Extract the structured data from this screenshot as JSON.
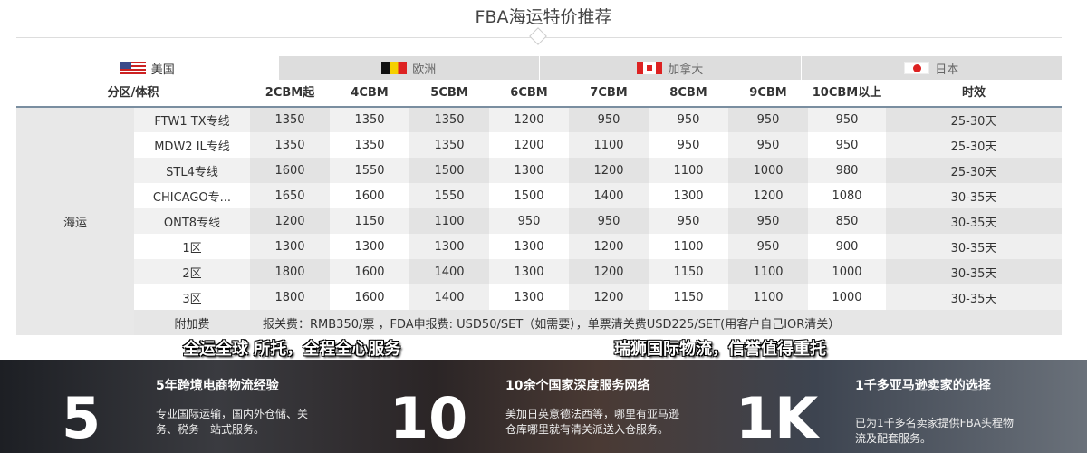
{
  "title": "FBA海运特价推荐",
  "tabs": [
    {
      "label": "美国",
      "flag": "us-flag",
      "active": true
    },
    {
      "label": "欧洲",
      "flag": "be-flag"
    },
    {
      "label": "加拿大",
      "flag": "ca-flag"
    },
    {
      "label": "日本",
      "flag": "jp-flag"
    }
  ],
  "headers": [
    "分区/体积",
    "2CBM起",
    "4CBM",
    "5CBM",
    "6CBM",
    "7CBM",
    "8CBM",
    "9CBM",
    "10CBM以上",
    "时效"
  ],
  "zone": "海运",
  "rows": [
    [
      "FTW1 TX专线",
      "1350",
      "1350",
      "1350",
      "1200",
      "950",
      "950",
      "950",
      "950",
      "25-30天"
    ],
    [
      "MDW2 IL专线",
      "1350",
      "1350",
      "1350",
      "1200",
      "1100",
      "950",
      "950",
      "950",
      "25-30天"
    ],
    [
      "STL4专线",
      "1600",
      "1550",
      "1500",
      "1300",
      "1200",
      "1100",
      "1000",
      "980",
      "25-30天"
    ],
    [
      "CHICAGO专...",
      "1650",
      "1600",
      "1550",
      "1500",
      "1400",
      "1300",
      "1200",
      "1080",
      "30-35天"
    ],
    [
      "ONT8专线",
      "1200",
      "1150",
      "1100",
      "950",
      "950",
      "950",
      "950",
      "850",
      "30-35天"
    ],
    [
      "1区",
      "1300",
      "1300",
      "1300",
      "1300",
      "1200",
      "1100",
      "950",
      "900",
      "30-35天"
    ],
    [
      "2区",
      "1800",
      "1600",
      "1400",
      "1300",
      "1200",
      "1150",
      "1100",
      "1000",
      "30-35天"
    ],
    [
      "3区",
      "1800",
      "1600",
      "1400",
      "1300",
      "1200",
      "1150",
      "1100",
      "1000",
      "30-35天"
    ]
  ],
  "surcharge": {
    "label": "附加费",
    "text": "报关费：RMB350/票 ，FDA申报费: USD50/SET（如需要），单票清关费USD225/SET(用客户自己IOR清关）"
  },
  "slogans": [
    "全运全球 所托，全程全心服务",
    "瑞狮国际物流，信誉值得重托"
  ],
  "stats": [
    {
      "number": "5",
      "title": "5年跨境电商物流经验",
      "desc": "专业国际运输，国内外仓储、关务、税务一站式服务。"
    },
    {
      "number": "10",
      "title": "10余个国家深度服务网络",
      "desc": "美加日英意德法西等，哪里有亚马逊仓库哪里就有清关派送入仓服务。"
    },
    {
      "number": "1K",
      "title": "1千多亚马逊卖家的选择",
      "desc": "已为1千多名卖家提供FBA头程物流及配套服务。"
    }
  ]
}
